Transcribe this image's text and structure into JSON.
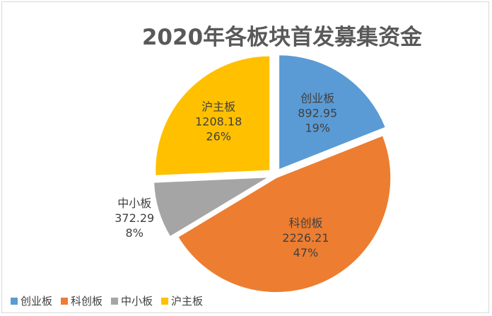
{
  "chart_data": {
    "type": "pie",
    "title": "2020年各板块首发募集资金",
    "slices": [
      {
        "name": "创业板",
        "value": 892.95,
        "percent": "19%",
        "color": "#5b9bd5"
      },
      {
        "name": "科创板",
        "value": 2226.21,
        "percent": "47%",
        "color": "#ed7d31"
      },
      {
        "name": "中小板",
        "value": 372.29,
        "percent": "8%",
        "color": "#a5a5a5"
      },
      {
        "name": "沪主板",
        "value": 1208.18,
        "percent": "26%",
        "color": "#ffc000"
      }
    ],
    "legend_position": "bottom-left",
    "exploded": true
  }
}
